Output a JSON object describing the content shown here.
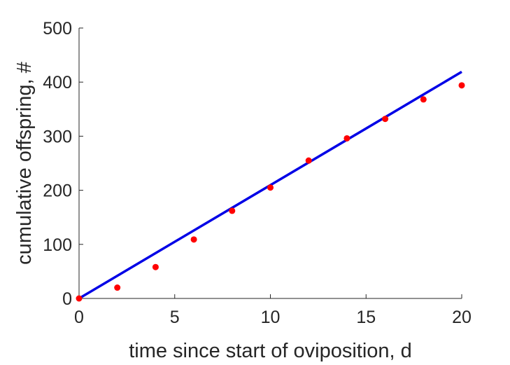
{
  "chart_data": {
    "type": "scatter",
    "xlabel": "time since start of oviposition, d",
    "ylabel": "cumulative offspring, #",
    "xlim": [
      0,
      20
    ],
    "ylim": [
      0,
      500
    ],
    "grid": false,
    "x_ticks": [
      0,
      5,
      10,
      15,
      20
    ],
    "y_ticks": [
      0,
      100,
      200,
      300,
      400,
      500
    ],
    "x_tick_labels": [
      "0",
      "5",
      "10",
      "15",
      "20"
    ],
    "y_tick_labels": [
      "0",
      "100",
      "200",
      "300",
      "400",
      "500"
    ],
    "series": [
      {
        "kind": "points",
        "color": "#ff0000",
        "x": [
          0,
          2,
          4,
          6,
          8,
          10,
          12,
          14,
          16,
          18,
          20
        ],
        "y": [
          0,
          20,
          58,
          109,
          162,
          205,
          255,
          296,
          332,
          368,
          394
        ]
      },
      {
        "kind": "line",
        "color": "#0000e6",
        "x": [
          0,
          20
        ],
        "y": [
          0,
          419
        ]
      }
    ]
  }
}
